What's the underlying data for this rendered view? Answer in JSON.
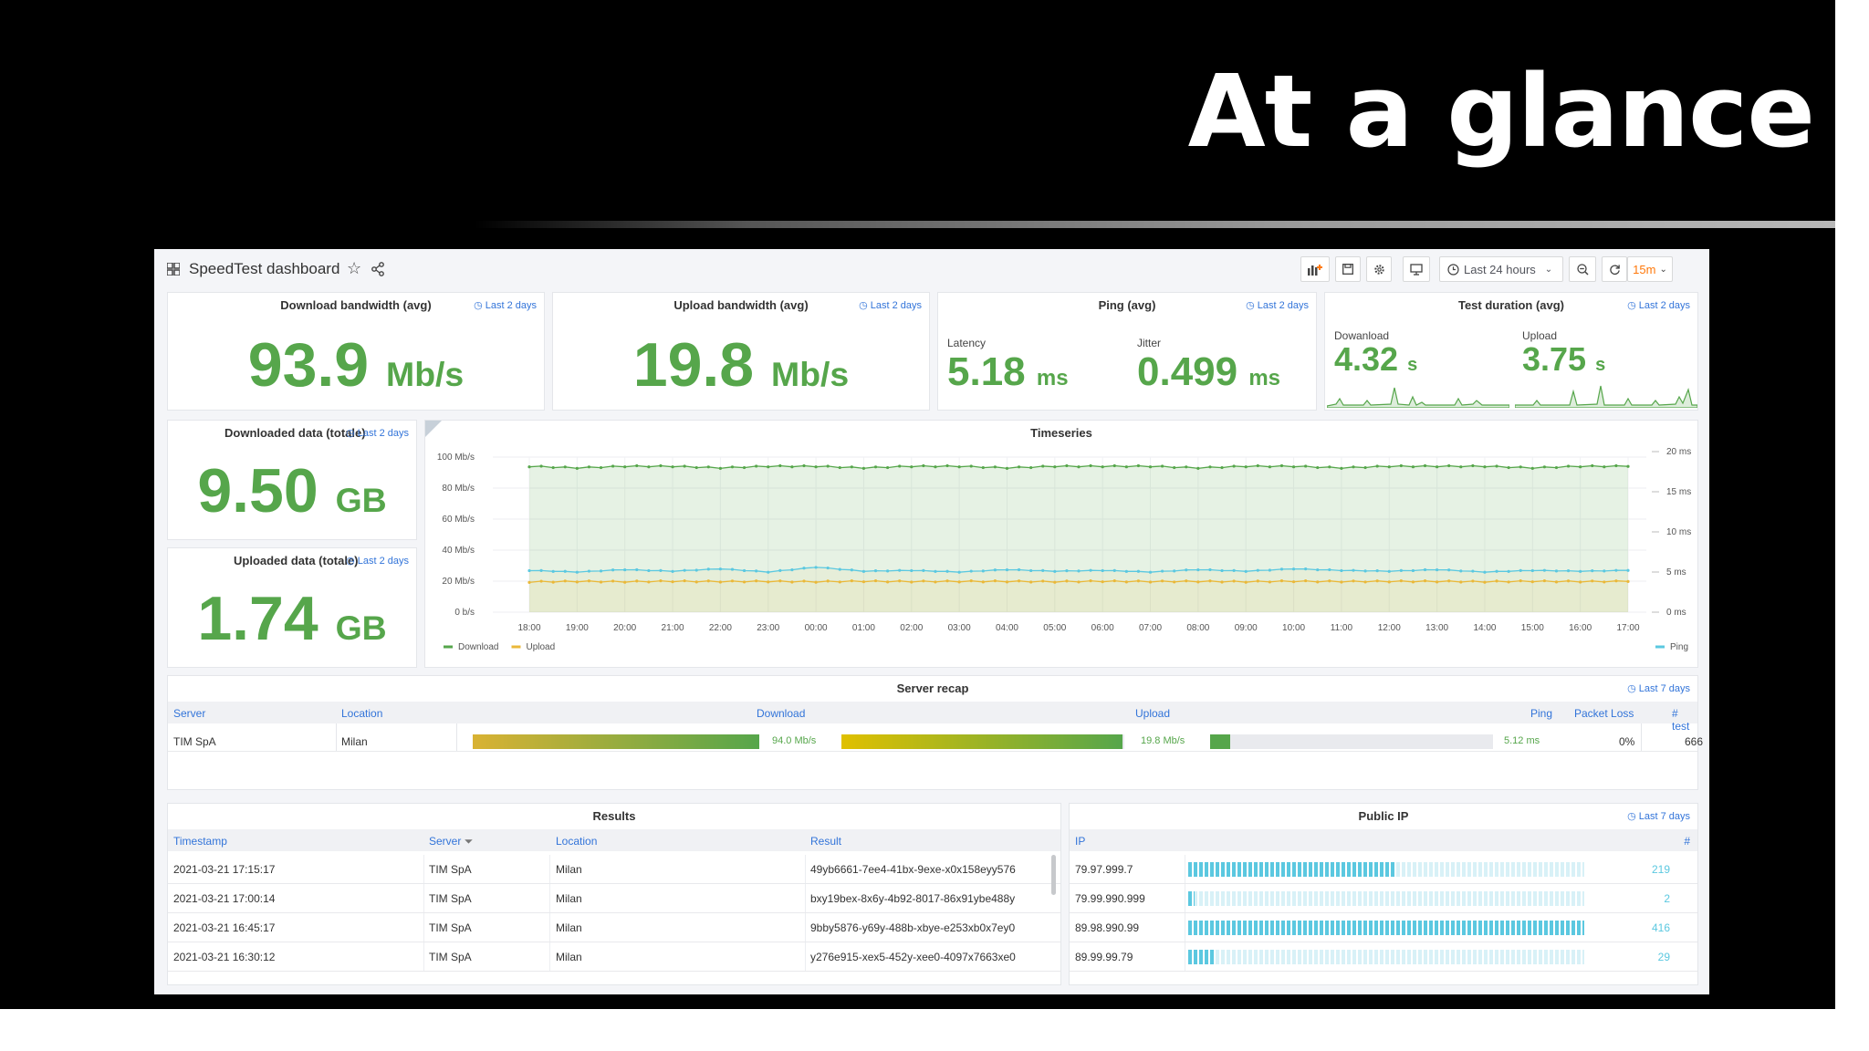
{
  "slide": {
    "title": "At a glance"
  },
  "toolbar": {
    "dashboard_title": "SpeedTest dashboard",
    "time_range": "Last 24 hours",
    "refresh": "15m"
  },
  "stats": {
    "download": {
      "title": "Download bandwidth (avg)",
      "tag": "Last 2 days",
      "value": "93.9",
      "unit": "Mb/s"
    },
    "upload": {
      "title": "Upload bandwidth (avg)",
      "tag": "Last 2 days",
      "value": "19.8",
      "unit": "Mb/s"
    },
    "ping": {
      "title": "Ping (avg)",
      "tag": "Last 2 days",
      "latency_label": "Latency",
      "latency_value": "5.18",
      "latency_unit": "ms",
      "jitter_label": "Jitter",
      "jitter_value": "0.499",
      "jitter_unit": "ms"
    },
    "duration": {
      "title": "Test duration (avg)",
      "tag": "Last 2 days",
      "download_label": "Dowanload",
      "download_value": "4.32",
      "download_unit": "s",
      "upload_label": "Upload",
      "upload_value": "3.75",
      "upload_unit": "s"
    },
    "downloaded": {
      "title": "Downloaded data (totale)",
      "tag": "Last 2 days",
      "value": "9.50",
      "unit": "GB"
    },
    "uploaded": {
      "title": "Uploaded data (totale)",
      "tag": "Last 2 days",
      "value": "1.74",
      "unit": "GB"
    }
  },
  "chart_data": {
    "type": "line",
    "title": "Timeseries",
    "x": [
      "18:00",
      "19:00",
      "20:00",
      "21:00",
      "22:00",
      "23:00",
      "00:00",
      "01:00",
      "02:00",
      "03:00",
      "04:00",
      "05:00",
      "06:00",
      "07:00",
      "08:00",
      "09:00",
      "10:00",
      "11:00",
      "12:00",
      "13:00",
      "14:00",
      "15:00",
      "16:00",
      "17:00"
    ],
    "y_left_ticks": [
      "100 Mb/s",
      "80 Mb/s",
      "60 Mb/s",
      "40 Mb/s",
      "20 Mb/s",
      "0 b/s"
    ],
    "y_right_ticks": [
      "20 ms",
      "15 ms",
      "10 ms",
      "5 ms",
      "0 ms"
    ],
    "ylim_left": [
      0,
      100
    ],
    "ylim_right": [
      0,
      20
    ],
    "series": [
      {
        "name": "Download",
        "axis": "left",
        "color": "#56a64b",
        "values": [
          94,
          93,
          94,
          94,
          93,
          94,
          94,
          93,
          94,
          94,
          93,
          94,
          94,
          94,
          93,
          94,
          94,
          93,
          94,
          94,
          94,
          93,
          94,
          94
        ]
      },
      {
        "name": "Upload",
        "axis": "left",
        "color": "#eab839",
        "values": [
          19.5,
          19.8,
          19.6,
          19.9,
          19.7,
          19.8,
          19.6,
          19.9,
          19.7,
          19.8,
          19.8,
          19.6,
          19.9,
          19.7,
          19.8,
          19.6,
          19.9,
          19.7,
          19.8,
          19.8,
          19.6,
          19.9,
          19.7,
          19.8
        ]
      },
      {
        "name": "Ping",
        "axis": "right",
        "color": "#5bc8e0",
        "values": [
          5.2,
          5.0,
          5.3,
          5.1,
          5.4,
          5.0,
          5.6,
          5.1,
          5.2,
          5.0,
          5.3,
          5.1,
          5.2,
          5.0,
          5.3,
          5.1,
          5.4,
          5.2,
          5.1,
          5.3,
          5.0,
          5.2,
          5.1,
          5.2
        ]
      }
    ],
    "legend_placement": "bottom",
    "grid": true
  },
  "server_recap": {
    "title": "Server recap",
    "tag": "Last 7 days",
    "headers": {
      "server": "Server",
      "location": "Location",
      "download": "Download",
      "upload": "Upload",
      "ping": "Ping",
      "packet_loss": "Packet Loss",
      "tests": "# test"
    },
    "row": {
      "server": "TIM SpA",
      "location": "Milan",
      "download": "94.0 Mb/s",
      "download_level": 0.94,
      "upload": "19.8 Mb/s",
      "upload_level": 0.99,
      "ping": "5.12 ms",
      "ping_level": 0.07,
      "packet_loss": "0%",
      "tests": "666"
    }
  },
  "results": {
    "title": "Results",
    "headers": {
      "timestamp": "Timestamp",
      "server": "Server",
      "location": "Location",
      "result": "Result"
    },
    "rows": [
      {
        "timestamp": "2021-03-21 17:15:17",
        "server": "TIM SpA",
        "location": "Milan",
        "result": "49yb6661-7ee4-41bx-9exe-x0x158eyy576"
      },
      {
        "timestamp": "2021-03-21 17:00:14",
        "server": "TIM SpA",
        "location": "Milan",
        "result": "bxy19bex-8x6y-4b92-8017-86x91ybe488y"
      },
      {
        "timestamp": "2021-03-21 16:45:17",
        "server": "TIM SpA",
        "location": "Milan",
        "result": "9bby5876-y69y-488b-xbye-e253xb0x7ey0"
      },
      {
        "timestamp": "2021-03-21 16:30:12",
        "server": "TIM SpA",
        "location": "Milan",
        "result": "y276e915-xex5-452y-xee0-4097x7663xe0"
      }
    ]
  },
  "public_ip": {
    "title": "Public IP",
    "tag": "Last 7 days",
    "headers": {
      "ip": "IP",
      "count": "#"
    },
    "rows": [
      {
        "ip": "79.97.999.7",
        "count": "219",
        "level": 0.526
      },
      {
        "ip": "79.99.990.999",
        "count": "2",
        "level": 0.015
      },
      {
        "ip": "89.98.990.99",
        "count": "416",
        "level": 1.0
      },
      {
        "ip": "89.99.99.79",
        "count": "29",
        "level": 0.07
      }
    ]
  }
}
